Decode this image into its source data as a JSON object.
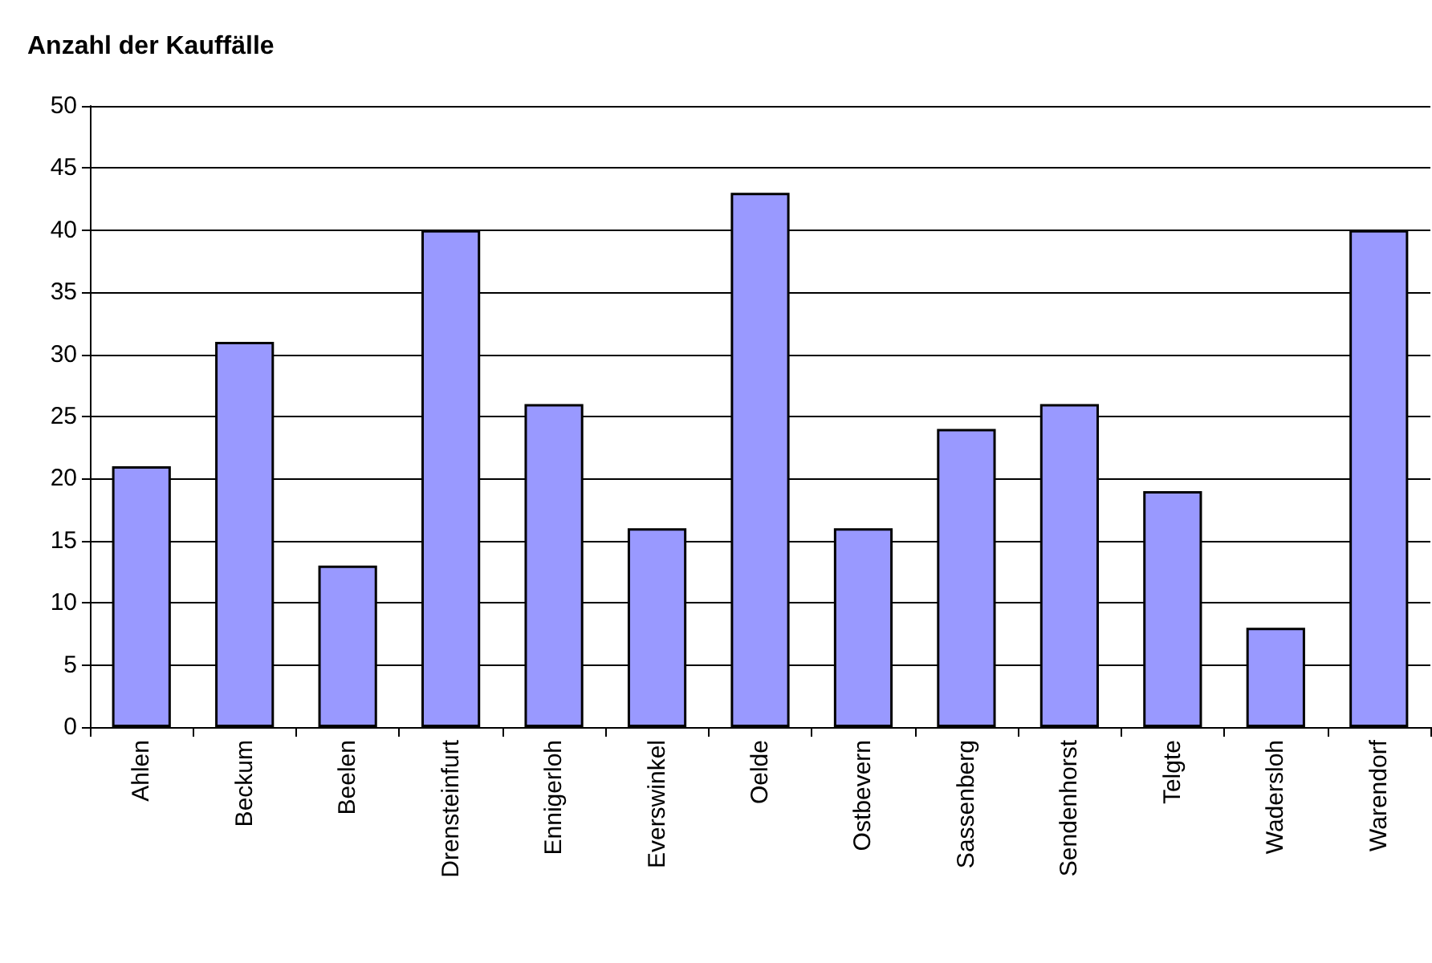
{
  "chart_data": {
    "type": "bar",
    "title": "Anzahl der Kauffälle",
    "categories": [
      "Ahlen",
      "Beckum",
      "Beelen",
      "Drensteinfurt",
      "Ennigerloh",
      "Everswinkel",
      "Oelde",
      "Ostbevern",
      "Sassenberg",
      "Sendenhorst",
      "Telgte",
      "Wadersloh",
      "Warendorf"
    ],
    "values": [
      21,
      31,
      13,
      40,
      26,
      16,
      43,
      16,
      24,
      26,
      19,
      8,
      40
    ],
    "color": "#9999ff",
    "ylim": [
      0,
      50
    ],
    "yticks": [
      0,
      5,
      10,
      15,
      20,
      25,
      30,
      35,
      40,
      45,
      50
    ],
    "grid": "y"
  }
}
